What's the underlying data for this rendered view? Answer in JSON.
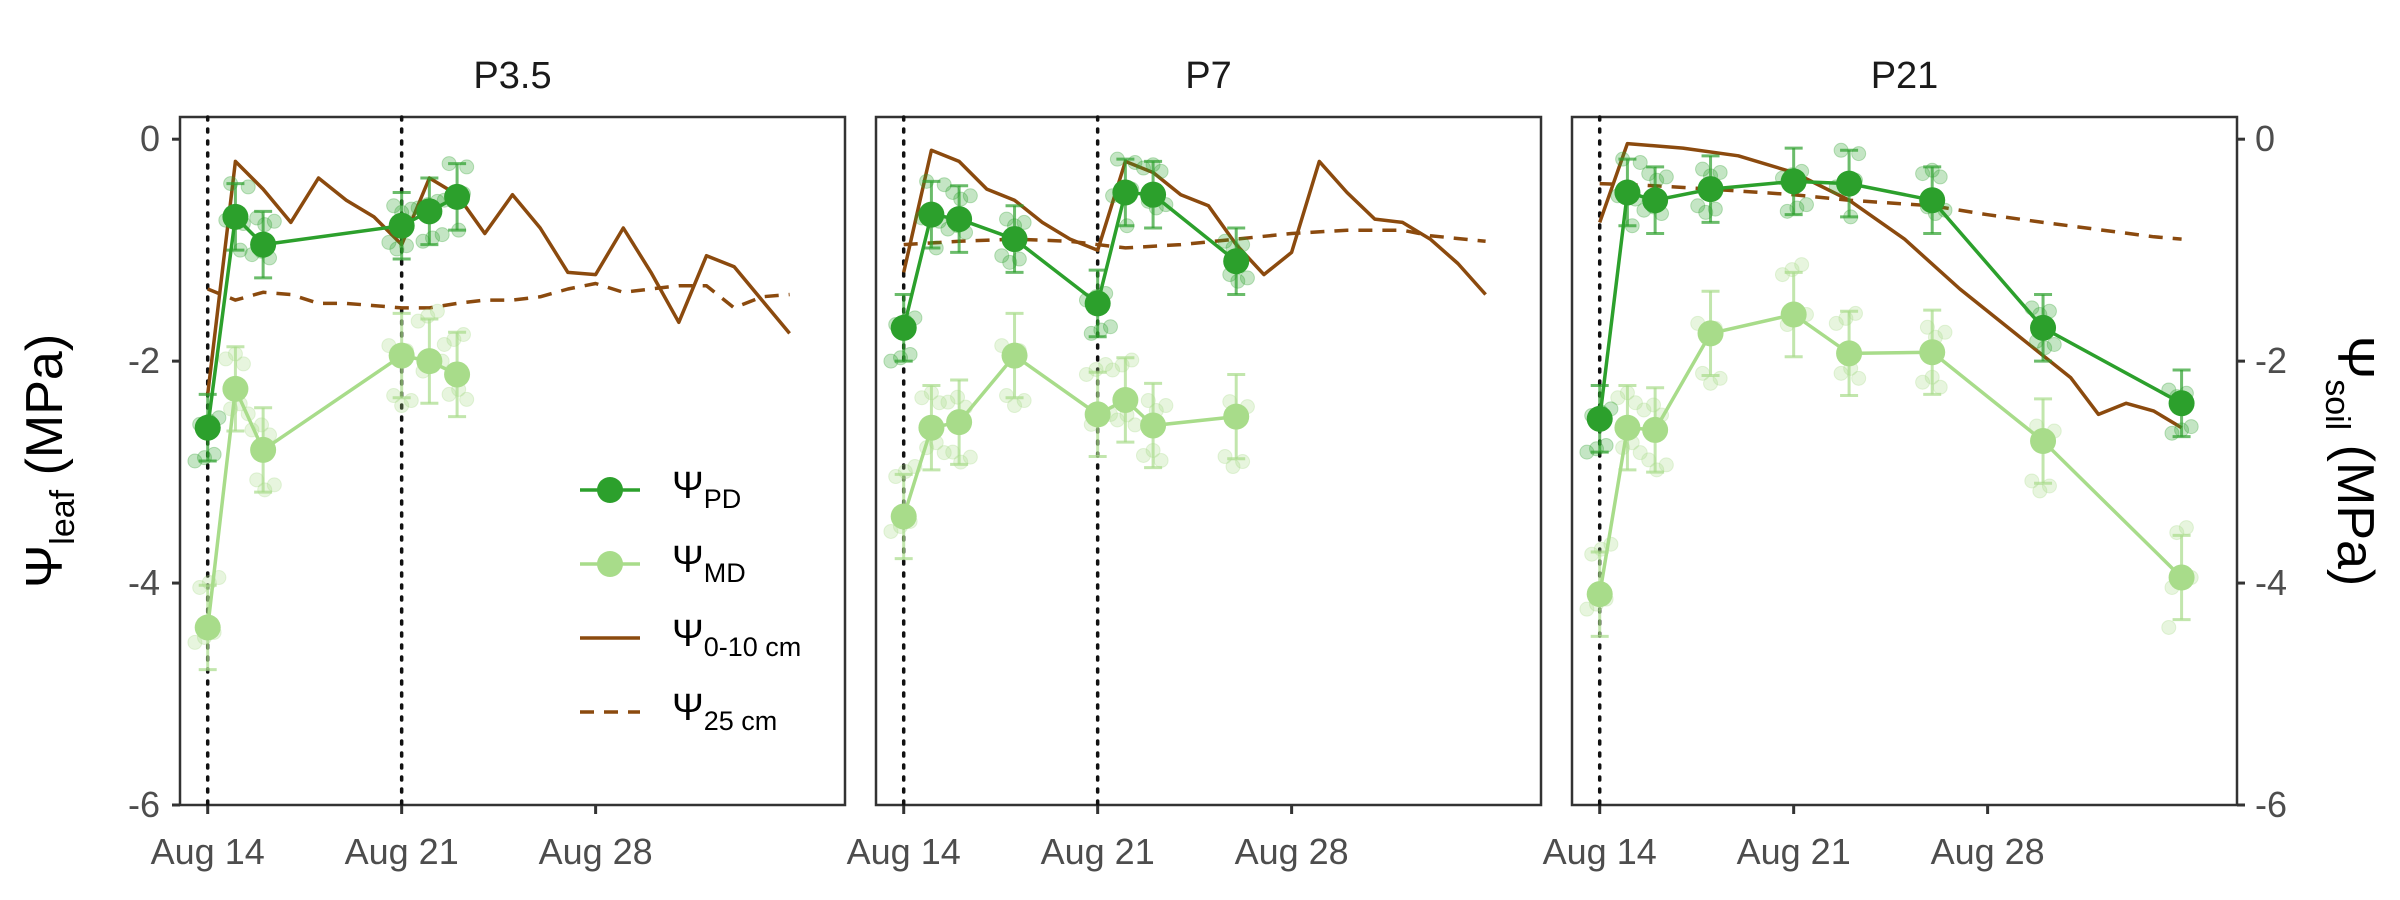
{
  "chart_data": {
    "type": "line",
    "panels": [
      {
        "title": "P3.5",
        "vlines": [
          "2023-08-14",
          "2023-08-21"
        ],
        "series": [
          {
            "key": "pd",
            "points": [
              [
                "2023-08-14",
                -2.6
              ],
              [
                "2023-08-15",
                -0.7
              ],
              [
                "2023-08-16",
                -0.95
              ],
              [
                "2023-08-21",
                -0.78
              ],
              [
                "2023-08-22",
                -0.65
              ],
              [
                "2023-08-23",
                -0.52
              ]
            ]
          },
          {
            "key": "md",
            "points": [
              [
                "2023-08-14",
                -4.4
              ],
              [
                "2023-08-15",
                -2.25
              ],
              [
                "2023-08-16",
                -2.8
              ],
              [
                "2023-08-21",
                -1.95
              ],
              [
                "2023-08-22",
                -2.0
              ],
              [
                "2023-08-23",
                -2.12
              ]
            ]
          },
          {
            "key": "s010",
            "points": [
              [
                "2023-08-14",
                -2.3
              ],
              [
                "2023-08-15",
                -0.2
              ],
              [
                "2023-08-16",
                -0.45
              ],
              [
                "2023-08-17",
                -0.75
              ],
              [
                "2023-08-18",
                -0.35
              ],
              [
                "2023-08-19",
                -0.55
              ],
              [
                "2023-08-20",
                -0.7
              ],
              [
                "2023-08-21",
                -0.95
              ],
              [
                "2023-08-22",
                -0.35
              ],
              [
                "2023-08-23",
                -0.5
              ],
              [
                "2023-08-24",
                -0.85
              ],
              [
                "2023-08-25",
                -0.5
              ],
              [
                "2023-08-26",
                -0.8
              ],
              [
                "2023-08-27",
                -1.2
              ],
              [
                "2023-08-28",
                -1.22
              ],
              [
                "2023-08-29",
                -0.8
              ],
              [
                "2023-08-30",
                -1.2
              ],
              [
                "2023-08-31",
                -1.65
              ],
              [
                "2023-09-01",
                -1.05
              ],
              [
                "2023-09-02",
                -1.15
              ],
              [
                "2023-09-03",
                -1.45
              ],
              [
                "2023-09-04",
                -1.75
              ]
            ]
          },
          {
            "key": "s25",
            "points": [
              [
                "2023-08-14",
                -1.35
              ],
              [
                "2023-08-15",
                -1.45
              ],
              [
                "2023-08-16",
                -1.38
              ],
              [
                "2023-08-17",
                -1.4
              ],
              [
                "2023-08-18",
                -1.48
              ],
              [
                "2023-08-19",
                -1.48
              ],
              [
                "2023-08-20",
                -1.5
              ],
              [
                "2023-08-21",
                -1.52
              ],
              [
                "2023-08-22",
                -1.52
              ],
              [
                "2023-08-23",
                -1.48
              ],
              [
                "2023-08-24",
                -1.45
              ],
              [
                "2023-08-25",
                -1.45
              ],
              [
                "2023-08-26",
                -1.42
              ],
              [
                "2023-08-27",
                -1.35
              ],
              [
                "2023-08-28",
                -1.3
              ],
              [
                "2023-08-29",
                -1.38
              ],
              [
                "2023-08-30",
                -1.35
              ],
              [
                "2023-08-31",
                -1.32
              ],
              [
                "2023-09-01",
                -1.32
              ],
              [
                "2023-09-02",
                -1.52
              ],
              [
                "2023-09-03",
                -1.42
              ],
              [
                "2023-09-04",
                -1.4
              ]
            ]
          }
        ]
      },
      {
        "title": "P7",
        "vlines": [
          "2023-08-14",
          "2023-08-21"
        ],
        "series": [
          {
            "key": "pd",
            "points": [
              [
                "2023-08-14",
                -1.7
              ],
              [
                "2023-08-15",
                -0.68
              ],
              [
                "2023-08-16",
                -0.72
              ],
              [
                "2023-08-18",
                -0.9
              ],
              [
                "2023-08-21",
                -1.48
              ],
              [
                "2023-08-22",
                -0.48
              ],
              [
                "2023-08-23",
                -0.5
              ],
              [
                "2023-08-26",
                -1.1
              ]
            ]
          },
          {
            "key": "md",
            "points": [
              [
                "2023-08-14",
                -3.4
              ],
              [
                "2023-08-15",
                -2.6
              ],
              [
                "2023-08-16",
                -2.55
              ],
              [
                "2023-08-18",
                -1.95
              ],
              [
                "2023-08-21",
                -2.48
              ],
              [
                "2023-08-22",
                -2.35
              ],
              [
                "2023-08-23",
                -2.58
              ],
              [
                "2023-08-26",
                -2.5
              ]
            ]
          },
          {
            "key": "s010",
            "points": [
              [
                "2023-08-14",
                -1.2
              ],
              [
                "2023-08-15",
                -0.1
              ],
              [
                "2023-08-16",
                -0.2
              ],
              [
                "2023-08-17",
                -0.45
              ],
              [
                "2023-08-18",
                -0.55
              ],
              [
                "2023-08-19",
                -0.75
              ],
              [
                "2023-08-20",
                -0.9
              ],
              [
                "2023-08-21",
                -1.0
              ],
              [
                "2023-08-22",
                -0.2
              ],
              [
                "2023-08-23",
                -0.3
              ],
              [
                "2023-08-24",
                -0.5
              ],
              [
                "2023-08-25",
                -0.6
              ],
              [
                "2023-08-26",
                -0.95
              ],
              [
                "2023-08-27",
                -1.22
              ],
              [
                "2023-08-28",
                -1.02
              ],
              [
                "2023-08-29",
                -0.2
              ],
              [
                "2023-08-30",
                -0.48
              ],
              [
                "2023-08-31",
                -0.72
              ],
              [
                "2023-09-01",
                -0.75
              ],
              [
                "2023-09-02",
                -0.9
              ],
              [
                "2023-09-03",
                -1.12
              ],
              [
                "2023-09-04",
                -1.4
              ]
            ]
          },
          {
            "key": "s25",
            "points": [
              [
                "2023-08-14",
                -0.95
              ],
              [
                "2023-08-16",
                -0.92
              ],
              [
                "2023-08-18",
                -0.9
              ],
              [
                "2023-08-20",
                -0.92
              ],
              [
                "2023-08-22",
                -0.98
              ],
              [
                "2023-08-24",
                -0.95
              ],
              [
                "2023-08-26",
                -0.9
              ],
              [
                "2023-08-28",
                -0.85
              ],
              [
                "2023-08-30",
                -0.82
              ],
              [
                "2023-09-01",
                -0.82
              ],
              [
                "2023-09-02",
                -0.87
              ],
              [
                "2023-09-04",
                -0.92
              ]
            ]
          }
        ]
      },
      {
        "title": "P21",
        "vlines": [
          "2023-08-14"
        ],
        "series": [
          {
            "key": "pd",
            "points": [
              [
                "2023-08-14",
                -2.52
              ],
              [
                "2023-08-15",
                -0.48
              ],
              [
                "2023-08-16",
                -0.55
              ],
              [
                "2023-08-18",
                -0.45
              ],
              [
                "2023-08-21",
                -0.38
              ],
              [
                "2023-08-23",
                -0.4
              ],
              [
                "2023-08-26",
                -0.55
              ],
              [
                "2023-08-30",
                -1.7
              ],
              [
                "2023-09-04",
                -2.38
              ]
            ]
          },
          {
            "key": "md",
            "points": [
              [
                "2023-08-14",
                -4.1
              ],
              [
                "2023-08-15",
                -2.6
              ],
              [
                "2023-08-16",
                -2.62
              ],
              [
                "2023-08-18",
                -1.75
              ],
              [
                "2023-08-21",
                -1.58
              ],
              [
                "2023-08-23",
                -1.93
              ],
              [
                "2023-08-26",
                -1.92
              ],
              [
                "2023-08-30",
                -2.72
              ],
              [
                "2023-09-04",
                -3.95
              ]
            ]
          },
          {
            "key": "s010",
            "points": [
              [
                "2023-08-14",
                -0.75
              ],
              [
                "2023-08-15",
                -0.04
              ],
              [
                "2023-08-17",
                -0.08
              ],
              [
                "2023-08-19",
                -0.15
              ],
              [
                "2023-08-21",
                -0.3
              ],
              [
                "2023-08-23",
                -0.55
              ],
              [
                "2023-08-25",
                -0.9
              ],
              [
                "2023-08-27",
                -1.35
              ],
              [
                "2023-08-29",
                -1.75
              ],
              [
                "2023-08-31",
                -2.15
              ],
              [
                "2023-09-01",
                -2.48
              ],
              [
                "2023-09-02",
                -2.38
              ],
              [
                "2023-09-03",
                -2.45
              ],
              [
                "2023-09-04",
                -2.6
              ]
            ]
          },
          {
            "key": "s25",
            "points": [
              [
                "2023-08-14",
                -0.4
              ],
              [
                "2023-08-16",
                -0.42
              ],
              [
                "2023-08-18",
                -0.45
              ],
              [
                "2023-08-21",
                -0.5
              ],
              [
                "2023-08-23",
                -0.55
              ],
              [
                "2023-08-26",
                -0.6
              ],
              [
                "2023-08-28",
                -0.68
              ],
              [
                "2023-08-30",
                -0.75
              ],
              [
                "2023-09-03",
                -0.88
              ],
              [
                "2023-09-04",
                -0.9
              ]
            ]
          }
        ]
      }
    ],
    "x_ticks": [
      "Aug 14",
      "Aug 21",
      "Aug 28"
    ],
    "y_ticks": [
      "0",
      "-2",
      "-4",
      "-6"
    ],
    "ylim": [
      -6,
      0.2
    ],
    "xlim": [
      "2023-08-13",
      "2023-09-06"
    ],
    "ylabel_left": {
      "symbol": "Ψ",
      "sub": "leaf",
      "rest": " (MPa)"
    },
    "ylabel_right": {
      "symbol": "Ψ",
      "sub": "soil",
      "rest": " (MPa)"
    },
    "legend": {
      "placement": "inside P3.5, bottom-right",
      "items": [
        {
          "key": "pd",
          "symbol": "Ψ",
          "sub": "PD",
          "style": "line+point"
        },
        {
          "key": "md",
          "symbol": "Ψ",
          "sub": "MD",
          "style": "line+point"
        },
        {
          "key": "s010",
          "symbol": "Ψ",
          "sub": "0-10 cm",
          "style": "solid"
        },
        {
          "key": "s25",
          "symbol": "Ψ",
          "sub": "25 cm",
          "style": "dashed"
        }
      ]
    },
    "colors": {
      "pd": "#2ca02c",
      "md": "#a8dc8a",
      "soil": "#8b4a0e"
    },
    "grid": false
  }
}
